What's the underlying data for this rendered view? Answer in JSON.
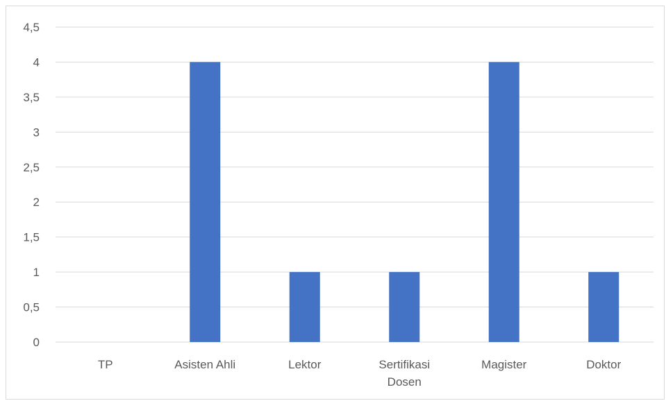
{
  "chart_data": {
    "type": "bar",
    "categories": [
      "TP",
      "Asisten Ahli",
      "Lektor",
      "Sertifikasi Dosen",
      "Magister",
      "Doktor"
    ],
    "category_lines": [
      [
        "TP"
      ],
      [
        "Asisten Ahli"
      ],
      [
        "Lektor"
      ],
      [
        "Sertifikasi",
        "Dosen"
      ],
      [
        "Magister"
      ],
      [
        "Doktor"
      ]
    ],
    "values": [
      0,
      4,
      1,
      1,
      4,
      1
    ],
    "yticks": [
      "0",
      "0,5",
      "1",
      "1,5",
      "2",
      "2,5",
      "3",
      "3,5",
      "4",
      "4,5"
    ],
    "ylim": [
      0,
      4.5
    ],
    "grid": true,
    "bar_color": "#4472c4",
    "grid_color": "#d9d9d9"
  }
}
